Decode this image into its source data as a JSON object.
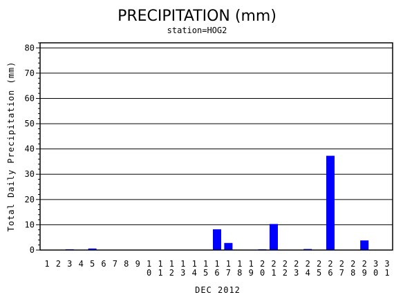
{
  "chart_data": {
    "type": "bar",
    "title": "PRECIPITATION (mm)",
    "subtitle": "station=HOG2",
    "xlabel": "DEC 2012",
    "ylabel": "Total Daily Precipitation (mm)",
    "ylim": [
      0,
      82
    ],
    "yticks": [
      0,
      10,
      20,
      30,
      40,
      50,
      60,
      70,
      80
    ],
    "grid": true,
    "series_color": "#0000ff",
    "categories": [
      "1",
      "2",
      "3",
      "4",
      "5",
      "6",
      "7",
      "8",
      "9",
      "10",
      "11",
      "12",
      "13",
      "14",
      "15",
      "16",
      "17",
      "18",
      "19",
      "20",
      "21",
      "22",
      "23",
      "24",
      "25",
      "26",
      "27",
      "28",
      "29",
      "30",
      "31"
    ],
    "values": [
      0,
      0,
      0.3,
      0,
      0.6,
      0,
      0,
      0,
      0,
      0,
      0,
      0,
      0,
      0,
      0,
      8.2,
      2.8,
      0,
      0,
      0.3,
      10.3,
      0,
      0,
      0.4,
      0,
      37.3,
      0,
      0,
      3.8,
      0,
      0
    ]
  }
}
